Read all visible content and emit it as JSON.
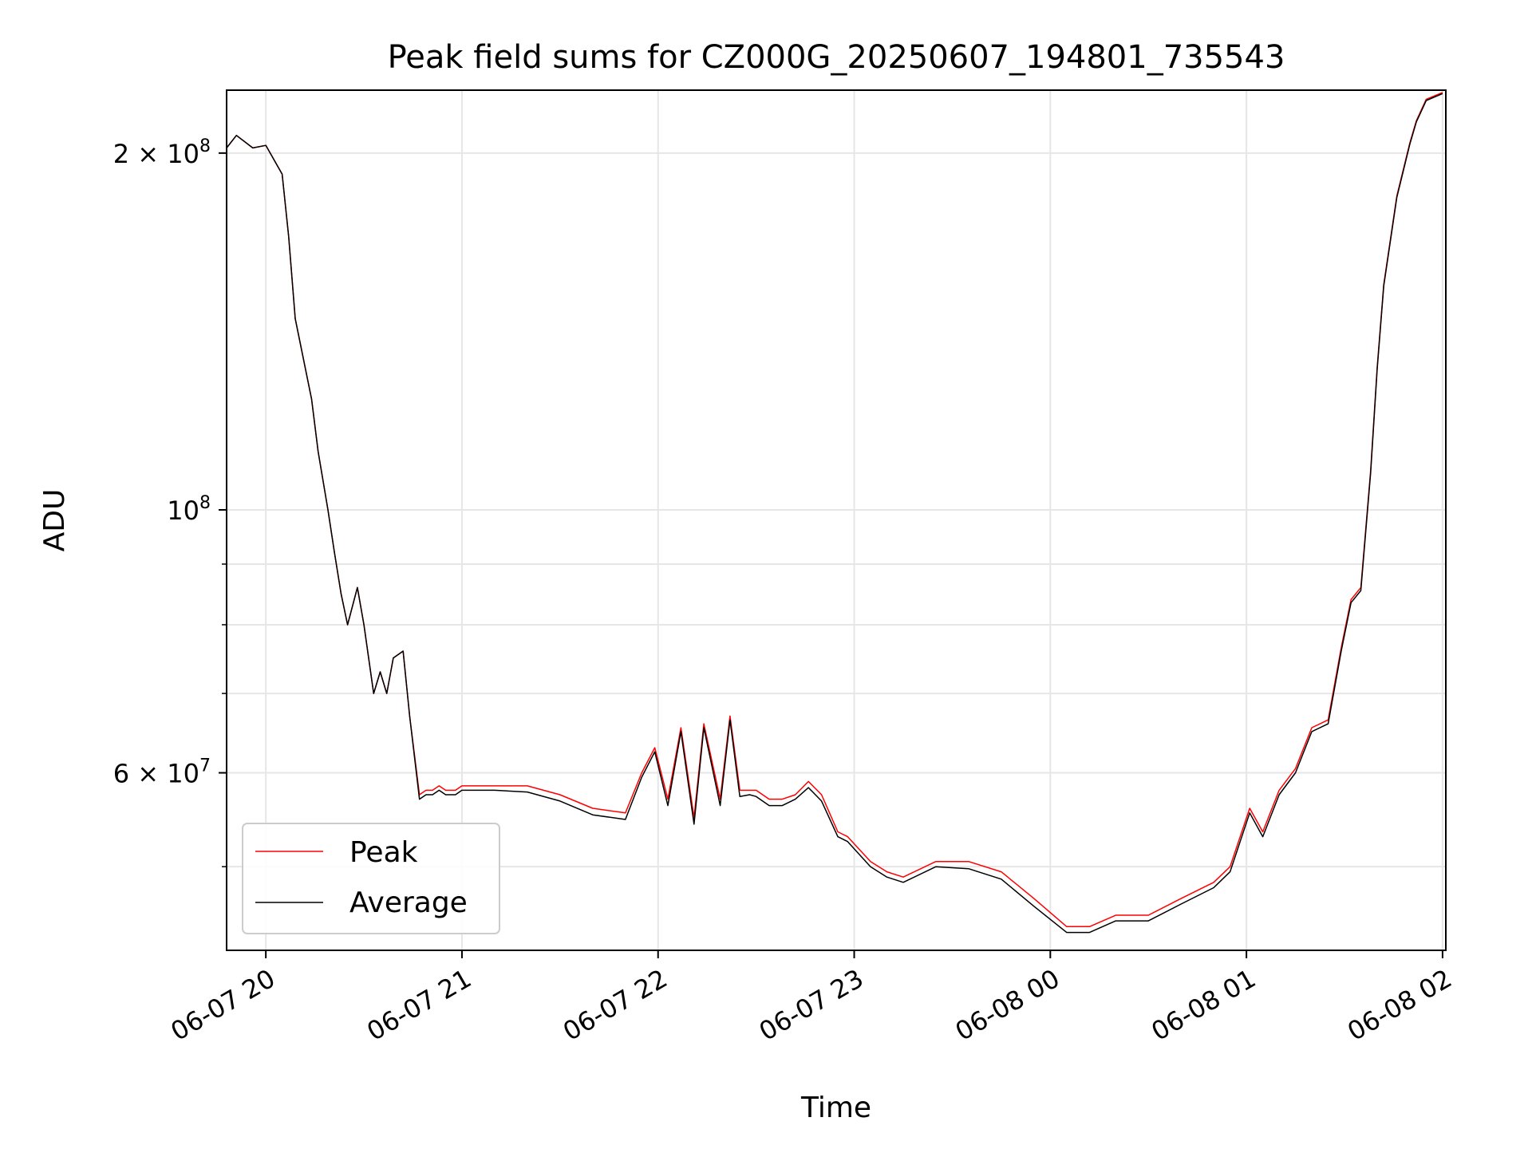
{
  "chart_data": {
    "type": "line",
    "title": "Peak field sums for CZ000G_20250607_194801_735543",
    "xlabel": "Time",
    "ylabel": "ADU",
    "y_scale": "log",
    "xlim": [
      "2025-06-07 19:48",
      "2025-06-08 02:01"
    ],
    "ylim": [
      42500000,
      226000000
    ],
    "grid": true,
    "legend_position": "lower-left",
    "x_tick_labels": [
      "06-07 20",
      "06-07 21",
      "06-07 22",
      "06-07 23",
      "06-08 00",
      "06-08 01",
      "06-08 02"
    ],
    "x_tick_values": [
      "2025-06-07 20:00",
      "2025-06-07 21:00",
      "2025-06-07 22:00",
      "2025-06-07 23:00",
      "2025-06-08 00:00",
      "2025-06-08 01:00",
      "2025-06-08 02:00"
    ],
    "y_tick_labels": [
      {
        "value": 200000000,
        "mantissa": "2",
        "exponent": "8"
      },
      {
        "value": 100000000,
        "mantissa": "",
        "exponent": "8"
      },
      {
        "value": 60000000,
        "mantissa": "6",
        "exponent": "7"
      }
    ],
    "y_minor_ticks": [
      50000000,
      70000000,
      80000000,
      90000000
    ],
    "x": [
      "2025-06-07 19:48",
      "2025-06-07 19:51",
      "2025-06-07 19:56",
      "2025-06-07 20:00",
      "2025-06-07 20:05",
      "2025-06-07 20:07",
      "2025-06-07 20:09",
      "2025-06-07 20:12",
      "2025-06-07 20:14",
      "2025-06-07 20:16",
      "2025-06-07 20:19",
      "2025-06-07 20:21",
      "2025-06-07 20:23",
      "2025-06-07 20:25",
      "2025-06-07 20:28",
      "2025-06-07 20:30",
      "2025-06-07 20:33",
      "2025-06-07 20:35",
      "2025-06-07 20:37",
      "2025-06-07 20:39",
      "2025-06-07 20:42",
      "2025-06-07 20:44",
      "2025-06-07 20:47",
      "2025-06-07 20:49",
      "2025-06-07 20:51",
      "2025-06-07 20:53",
      "2025-06-07 20:55",
      "2025-06-07 20:58",
      "2025-06-07 21:00",
      "2025-06-07 21:10",
      "2025-06-07 21:20",
      "2025-06-07 21:30",
      "2025-06-07 21:40",
      "2025-06-07 21:50",
      "2025-06-07 21:55",
      "2025-06-07 21:59",
      "2025-06-07 22:03",
      "2025-06-07 22:07",
      "2025-06-07 22:11",
      "2025-06-07 22:14",
      "2025-06-07 22:19",
      "2025-06-07 22:22",
      "2025-06-07 22:25",
      "2025-06-07 22:28",
      "2025-06-07 22:30",
      "2025-06-07 22:34",
      "2025-06-07 22:38",
      "2025-06-07 22:42",
      "2025-06-07 22:46",
      "2025-06-07 22:50",
      "2025-06-07 22:55",
      "2025-06-07 22:58",
      "2025-06-07 23:05",
      "2025-06-07 23:10",
      "2025-06-07 23:15",
      "2025-06-07 23:25",
      "2025-06-07 23:35",
      "2025-06-07 23:45",
      "2025-06-07 23:55",
      "2025-06-08 00:05",
      "2025-06-08 00:12",
      "2025-06-08 00:20",
      "2025-06-08 00:30",
      "2025-06-08 00:40",
      "2025-06-08 00:50",
      "2025-06-08 00:55",
      "2025-06-08 01:01",
      "2025-06-08 01:05",
      "2025-06-08 01:10",
      "2025-06-08 01:15",
      "2025-06-08 01:20",
      "2025-06-08 01:25",
      "2025-06-08 01:29",
      "2025-06-08 01:32",
      "2025-06-08 01:35",
      "2025-06-08 01:38",
      "2025-06-08 01:40",
      "2025-06-08 01:42",
      "2025-06-08 01:46",
      "2025-06-08 01:50",
      "2025-06-08 01:52",
      "2025-06-08 01:55",
      "2025-06-08 02:00"
    ],
    "series": [
      {
        "name": "Peak",
        "color": "#ff0000",
        "values": [
          202000000,
          207000000,
          202000000,
          203000000,
          192000000,
          170000000,
          145000000,
          132000000,
          124000000,
          112000000,
          100000000,
          92000000,
          85000000,
          80000000,
          86000000,
          80000000,
          70000000,
          73000000,
          70000000,
          75000000,
          76000000,
          67000000,
          57500000,
          58000000,
          58000000,
          58500000,
          58000000,
          58000000,
          58500000,
          58500000,
          58500000,
          57500000,
          56000000,
          55500000,
          60000000,
          63000000,
          57000000,
          65500000,
          55000000,
          66000000,
          57000000,
          67000000,
          58000000,
          58000000,
          58000000,
          57000000,
          57000000,
          57500000,
          59000000,
          57500000,
          53500000,
          53000000,
          50500000,
          49500000,
          49000000,
          50500000,
          50500000,
          49500000,
          47000000,
          44500000,
          44500000,
          45500000,
          45500000,
          47000000,
          48500000,
          50000000,
          56000000,
          53500000,
          58000000,
          60500000,
          65500000,
          66500000,
          76500000,
          84000000,
          86000000,
          108000000,
          132000000,
          155000000,
          184000000,
          204000000,
          213000000,
          222000000,
          225000000
        ]
      },
      {
        "name": "Average",
        "color": "#000000",
        "values": [
          202000000,
          207000000,
          202000000,
          203000000,
          192000000,
          170000000,
          145000000,
          132000000,
          124000000,
          112000000,
          100000000,
          92000000,
          85000000,
          80000000,
          86000000,
          80000000,
          70000000,
          73000000,
          70000000,
          75000000,
          76000000,
          67000000,
          57000000,
          57500000,
          57500000,
          58000000,
          57500000,
          57500000,
          58000000,
          58000000,
          57800000,
          56800000,
          55300000,
          54800000,
          59500000,
          62500000,
          56300000,
          65000000,
          54300000,
          65500000,
          56300000,
          66500000,
          57300000,
          57500000,
          57300000,
          56300000,
          56300000,
          57000000,
          58300000,
          56800000,
          53000000,
          52500000,
          50000000,
          49000000,
          48500000,
          50000000,
          49800000,
          48800000,
          46300000,
          44000000,
          44000000,
          45000000,
          45000000,
          46500000,
          48000000,
          49500000,
          55500000,
          53000000,
          57500000,
          60000000,
          65000000,
          66000000,
          76000000,
          83500000,
          85500000,
          107500000,
          131500000,
          154500000,
          183500000,
          203500000,
          212500000,
          221500000,
          224500000
        ]
      }
    ]
  }
}
